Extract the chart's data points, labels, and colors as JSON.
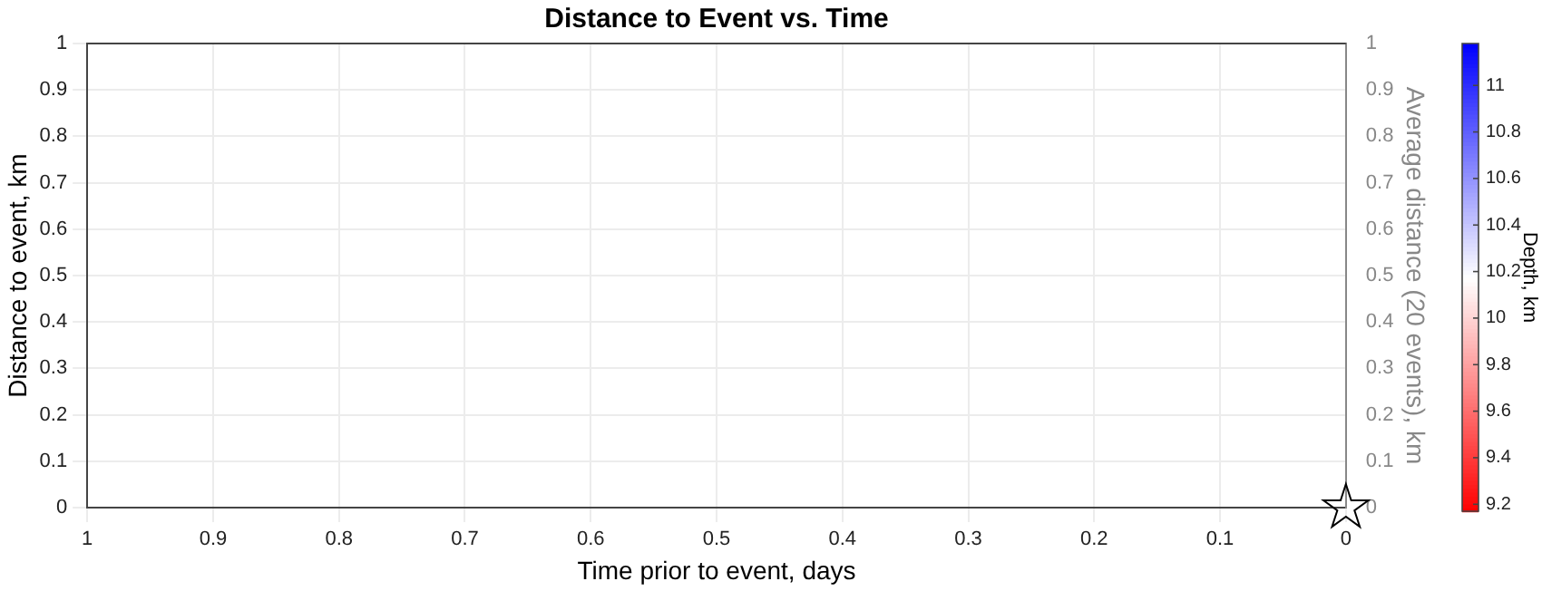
{
  "chart_data": {
    "type": "scatter",
    "title": "Distance to Event vs. Time",
    "xlabel": "Time prior to event, days",
    "ylabel": "Distance to event, km",
    "y2label": "Average distance (20 events), km",
    "clabel": "Depth, km",
    "x": [
      0
    ],
    "series": [
      {
        "color": "#000000",
        "values": [
          0
        ]
      }
    ],
    "marker": "star",
    "xlim": [
      1,
      0
    ],
    "xticks": [
      1,
      0.9,
      0.8,
      0.7,
      0.6,
      0.5,
      0.4,
      0.3,
      0.2,
      0.1,
      0
    ],
    "ylim": [
      0,
      1
    ],
    "yticks": [
      0,
      0.1,
      0.2,
      0.3,
      0.4,
      0.5,
      0.6,
      0.7,
      0.8,
      0.9,
      1
    ],
    "y2lim": [
      0,
      1
    ],
    "y2ticks": [
      0,
      0.1,
      0.2,
      0.3,
      0.4,
      0.5,
      0.6,
      0.7,
      0.8,
      0.9,
      1
    ],
    "clim": [
      9.17,
      11.18
    ],
    "cticks": [
      9.2,
      9.4,
      9.6,
      9.8,
      10,
      10.2,
      10.4,
      10.6,
      10.8,
      11
    ],
    "grid": true,
    "legend": false
  }
}
